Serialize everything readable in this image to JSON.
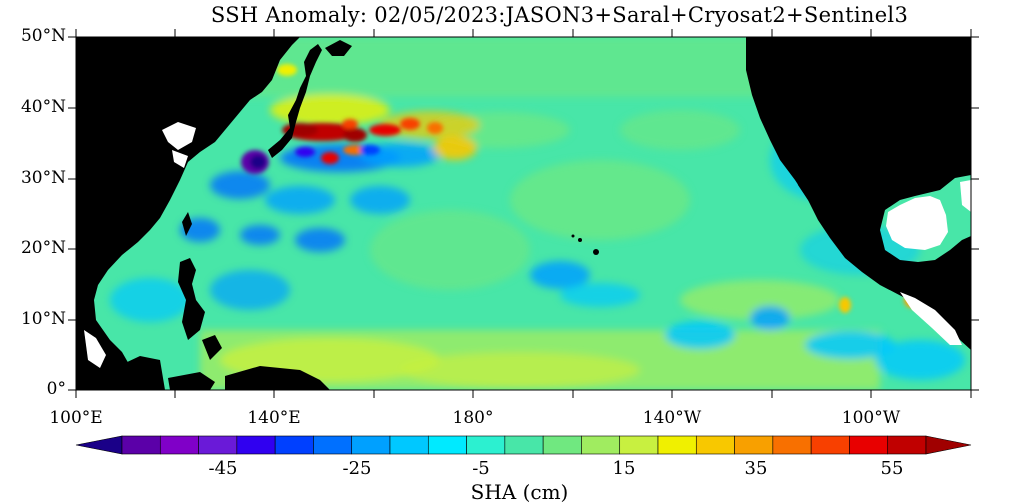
{
  "title": "SSH Anomaly: 02/05/2023:JASON3+Saral+Cryosat2+Sentinel3",
  "colorbar_label": "SHA (cm)",
  "lat_labels": [
    "50°N",
    "40°N",
    "30°N",
    "20°N",
    "10°N",
    "0°"
  ],
  "lon_labels": [
    "100°E",
    "140°E",
    "180°",
    "140°W",
    "100°W"
  ],
  "colorbar_ticks": [
    "-45",
    "-25",
    "-5",
    "15",
    "35",
    "55"
  ],
  "colors": {
    "land": "#000000",
    "ocean_background": "#48e6a8",
    "colorbar": [
      "#1a0088",
      "#5b00a8",
      "#8000c8",
      "#6a1ad8",
      "#3000f0",
      "#0040ff",
      "#0070ff",
      "#00a0ff",
      "#00c8ff",
      "#00eaff",
      "#2cf0d0",
      "#48e6a8",
      "#70e880",
      "#a0ec60",
      "#c8f040",
      "#f0f000",
      "#f8c800",
      "#f8a000",
      "#f87000",
      "#f84000",
      "#e80000",
      "#c00000",
      "#a00000"
    ]
  }
}
